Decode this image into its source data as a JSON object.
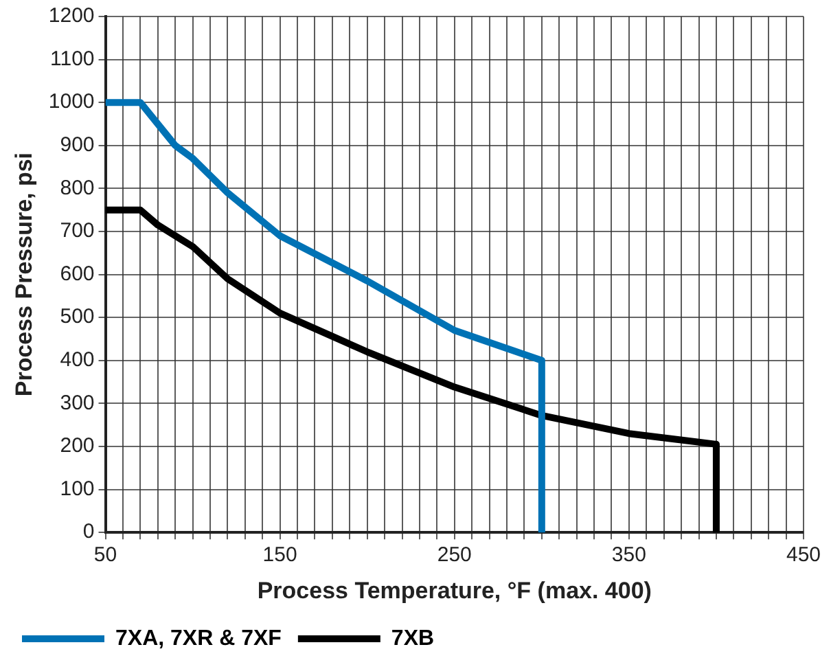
{
  "chart_data": {
    "type": "line",
    "xlabel": "Process Temperature, °F (max. 400)",
    "ylabel": "Process Pressure, psi",
    "series": [
      {
        "name": "7XA, 7XR & 7XF",
        "color": "#0072b5",
        "x": [
          50,
          70,
          80,
          90,
          100,
          120,
          150,
          200,
          250,
          300,
          300
        ],
        "values": [
          1000,
          1000,
          950,
          900,
          870,
          790,
          690,
          585,
          470,
          400,
          0
        ]
      },
      {
        "name": "7XB",
        "color": "#000000",
        "x": [
          50,
          70,
          80,
          90,
          100,
          120,
          150,
          200,
          250,
          300,
          350,
          400,
          400
        ],
        "values": [
          750,
          750,
          715,
          690,
          665,
          590,
          510,
          420,
          338,
          272,
          230,
          205,
          0
        ]
      }
    ],
    "xlim": [
      50,
      450
    ],
    "xticks": [
      50,
      {
        "value": 60,
        "label": null
      },
      {
        "value": 70,
        "label": null
      },
      {
        "value": 80,
        "label": null
      },
      {
        "value": 90,
        "label": null
      },
      {
        "value": 100,
        "label": null
      },
      {
        "value": 110,
        "label": null
      },
      {
        "value": 120,
        "label": null
      },
      {
        "value": 130,
        "label": null
      },
      {
        "value": 140,
        "label": null
      },
      150,
      {
        "value": 160,
        "label": null
      },
      {
        "value": 170,
        "label": null
      },
      {
        "value": 180,
        "label": null
      },
      {
        "value": 190,
        "label": null
      },
      {
        "value": 200,
        "label": null
      },
      {
        "value": 210,
        "label": null
      },
      {
        "value": 220,
        "label": null
      },
      {
        "value": 230,
        "label": null
      },
      {
        "value": 240,
        "label": null
      },
      250,
      {
        "value": 260,
        "label": null
      },
      {
        "value": 270,
        "label": null
      },
      {
        "value": 280,
        "label": null
      },
      {
        "value": 290,
        "label": null
      },
      {
        "value": 300,
        "label": null
      },
      {
        "value": 310,
        "label": null
      },
      {
        "value": 320,
        "label": null
      },
      {
        "value": 330,
        "label": null
      },
      {
        "value": 340,
        "label": null
      },
      350,
      {
        "value": 360,
        "label": null
      },
      {
        "value": 370,
        "label": null
      },
      {
        "value": 380,
        "label": null
      },
      {
        "value": 390,
        "label": null
      },
      {
        "value": 400,
        "label": null
      },
      {
        "value": 410,
        "label": null
      },
      {
        "value": 420,
        "label": null
      },
      {
        "value": 430,
        "label": null
      },
      {
        "value": 440,
        "label": null
      },
      450
    ],
    "ylim": [
      0,
      1200
    ],
    "yticks": [
      0,
      100,
      200,
      300,
      400,
      500,
      600,
      700,
      800,
      900,
      1000,
      1100,
      1200
    ],
    "grid": true,
    "legend": "bottom",
    "marker": "none",
    "line_style": "solid"
  }
}
